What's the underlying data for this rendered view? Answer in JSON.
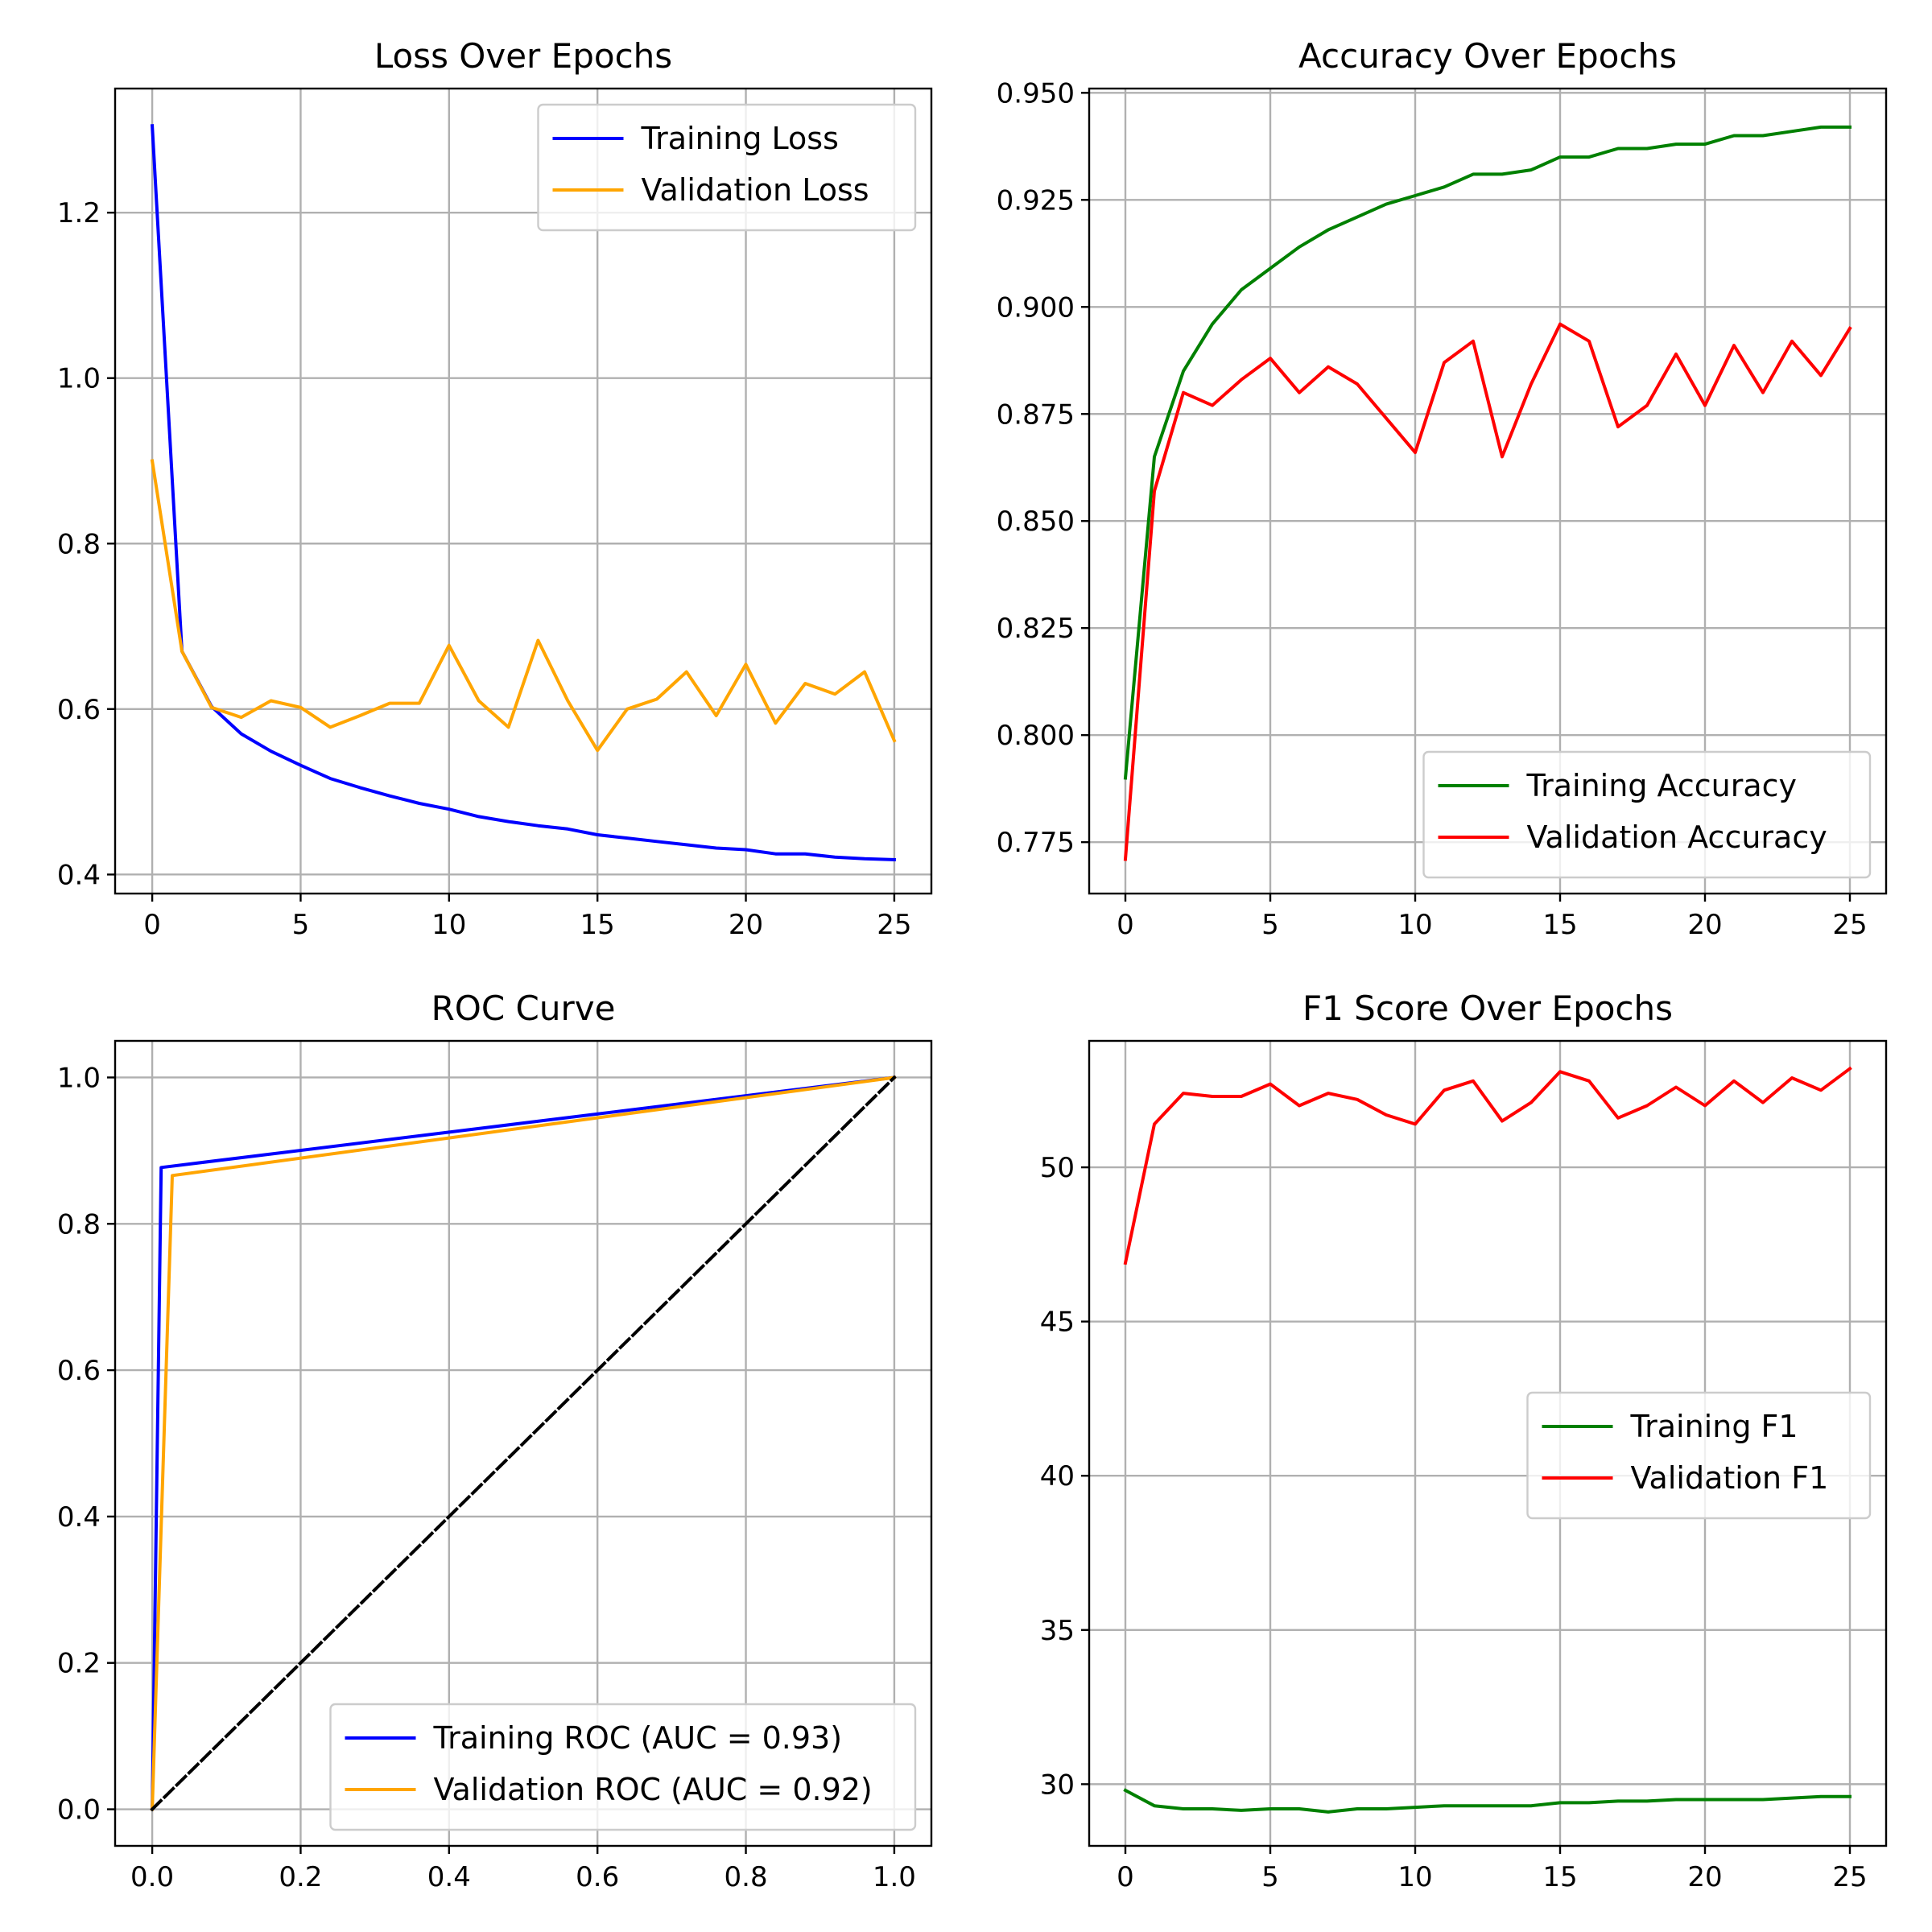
{
  "chart_data": [
    {
      "type": "line",
      "title": "Loss Over Epochs",
      "xlabel": "",
      "ylabel": "",
      "xlim": [
        -1.25,
        26.25
      ],
      "ylim": [
        0.377,
        1.35
      ],
      "xticks": [
        0,
        5,
        10,
        15,
        20,
        25
      ],
      "xtick_labels": [
        "0",
        "5",
        "10",
        "15",
        "20",
        "25"
      ],
      "yticks": [
        0.4,
        0.6,
        0.8,
        1.0,
        1.2
      ],
      "ytick_labels": [
        "0.4",
        "0.6",
        "0.8",
        "1.0",
        "1.2"
      ],
      "grid": true,
      "legend_position": "upper-right",
      "series": [
        {
          "name": "Training Loss",
          "color": "#0000ff",
          "x": [
            0,
            1,
            2,
            3,
            4,
            5,
            6,
            7,
            8,
            9,
            10,
            11,
            12,
            13,
            14,
            15,
            16,
            17,
            18,
            19,
            20,
            21,
            22,
            23,
            24,
            25
          ],
          "y": [
            1.305,
            0.67,
            0.603,
            0.57,
            0.549,
            0.532,
            0.516,
            0.505,
            0.495,
            0.486,
            0.479,
            0.47,
            0.464,
            0.459,
            0.455,
            0.448,
            0.444,
            0.44,
            0.436,
            0.432,
            0.43,
            0.425,
            0.425,
            0.421,
            0.419,
            0.418
          ]
        },
        {
          "name": "Validation Loss",
          "color": "#ffa500",
          "x": [
            0,
            1,
            2,
            3,
            4,
            5,
            6,
            7,
            8,
            9,
            10,
            11,
            12,
            13,
            14,
            15,
            16,
            17,
            18,
            19,
            20,
            21,
            22,
            23,
            24,
            25
          ],
          "y": [
            0.9,
            0.67,
            0.602,
            0.59,
            0.61,
            0.602,
            0.578,
            0.592,
            0.607,
            0.607,
            0.677,
            0.61,
            0.578,
            0.683,
            0.61,
            0.55,
            0.6,
            0.612,
            0.645,
            0.592,
            0.654,
            0.583,
            0.631,
            0.618,
            0.645,
            0.562
          ]
        }
      ]
    },
    {
      "type": "line",
      "title": "Accuracy Over Epochs",
      "xlabel": "",
      "ylabel": "",
      "xlim": [
        -1.25,
        26.25
      ],
      "ylim": [
        0.763,
        0.951
      ],
      "xticks": [
        0,
        5,
        10,
        15,
        20,
        25
      ],
      "xtick_labels": [
        "0",
        "5",
        "10",
        "15",
        "20",
        "25"
      ],
      "yticks": [
        0.775,
        0.8,
        0.825,
        0.85,
        0.875,
        0.9,
        0.925,
        0.95
      ],
      "ytick_labels": [
        "0.775",
        "0.800",
        "0.825",
        "0.850",
        "0.875",
        "0.900",
        "0.925",
        "0.950"
      ],
      "grid": true,
      "legend_position": "lower-right",
      "series": [
        {
          "name": "Training Accuracy",
          "color": "#008000",
          "x": [
            0,
            1,
            2,
            3,
            4,
            5,
            6,
            7,
            8,
            9,
            10,
            11,
            12,
            13,
            14,
            15,
            16,
            17,
            18,
            19,
            20,
            21,
            22,
            23,
            24,
            25
          ],
          "y": [
            0.79,
            0.865,
            0.885,
            0.896,
            0.904,
            0.909,
            0.914,
            0.918,
            0.921,
            0.924,
            0.926,
            0.928,
            0.931,
            0.931,
            0.932,
            0.935,
            0.935,
            0.937,
            0.937,
            0.938,
            0.938,
            0.94,
            0.94,
            0.941,
            0.942,
            0.942
          ]
        },
        {
          "name": "Validation Accuracy",
          "color": "#ff0000",
          "x": [
            0,
            1,
            2,
            3,
            4,
            5,
            6,
            7,
            8,
            9,
            10,
            11,
            12,
            13,
            14,
            15,
            16,
            17,
            18,
            19,
            20,
            21,
            22,
            23,
            24,
            25
          ],
          "y": [
            0.771,
            0.857,
            0.88,
            0.877,
            0.883,
            0.888,
            0.88,
            0.886,
            0.882,
            0.874,
            0.866,
            0.887,
            0.892,
            0.865,
            0.882,
            0.896,
            0.892,
            0.872,
            0.877,
            0.889,
            0.877,
            0.891,
            0.88,
            0.892,
            0.884,
            0.895
          ]
        }
      ]
    },
    {
      "type": "line",
      "title": "ROC Curve",
      "xlabel": "",
      "ylabel": "",
      "xlim": [
        -0.05,
        1.05
      ],
      "ylim": [
        -0.05,
        1.05
      ],
      "xticks": [
        0,
        0.2,
        0.4,
        0.6,
        0.8,
        1.0
      ],
      "xtick_labels": [
        "0.0",
        "0.2",
        "0.4",
        "0.6",
        "0.8",
        "1.0"
      ],
      "yticks": [
        0,
        0.2,
        0.4,
        0.6,
        0.8,
        1.0
      ],
      "ytick_labels": [
        "0.0",
        "0.2",
        "0.4",
        "0.6",
        "0.8",
        "1.0"
      ],
      "grid": true,
      "legend_position": "lower-right",
      "series": [
        {
          "name": "Training ROC (AUC = 0.93)",
          "color": "#0000ff",
          "x": [
            0,
            0.012,
            1.0
          ],
          "y": [
            0,
            0.877,
            1.0
          ]
        },
        {
          "name": "Validation ROC (AUC = 0.92)",
          "color": "#ffa500",
          "x": [
            0,
            0.027,
            1.0
          ],
          "y": [
            0,
            0.866,
            1.0
          ]
        },
        {
          "color": "#000000",
          "dashed": true,
          "x": [
            0,
            1
          ],
          "y": [
            0,
            1
          ]
        }
      ]
    },
    {
      "type": "line",
      "title": "F1 Score Over Epochs",
      "xlabel": "",
      "ylabel": "",
      "xlim": [
        -1.25,
        26.25
      ],
      "ylim": [
        28.0,
        54.1
      ],
      "xticks": [
        0,
        5,
        10,
        15,
        20,
        25
      ],
      "xtick_labels": [
        "0",
        "5",
        "10",
        "15",
        "20",
        "25"
      ],
      "yticks": [
        30,
        35,
        40,
        45,
        50
      ],
      "ytick_labels": [
        "30",
        "35",
        "40",
        "45",
        "50"
      ],
      "grid": true,
      "legend_position": "center-right",
      "series": [
        {
          "name": "Training F1",
          "color": "#008000",
          "x": [
            0,
            1,
            2,
            3,
            4,
            5,
            6,
            7,
            8,
            9,
            10,
            11,
            12,
            13,
            14,
            15,
            16,
            17,
            18,
            19,
            20,
            21,
            22,
            23,
            24,
            25
          ],
          "y": [
            29.8,
            29.3,
            29.2,
            29.2,
            29.15,
            29.2,
            29.2,
            29.1,
            29.2,
            29.2,
            29.25,
            29.3,
            29.3,
            29.3,
            29.3,
            29.4,
            29.4,
            29.45,
            29.45,
            29.5,
            29.5,
            29.5,
            29.5,
            29.55,
            29.6,
            29.6
          ]
        },
        {
          "name": "Validation F1",
          "color": "#ff0000",
          "x": [
            0,
            1,
            2,
            3,
            4,
            5,
            6,
            7,
            8,
            9,
            10,
            11,
            12,
            13,
            14,
            15,
            16,
            17,
            18,
            19,
            20,
            21,
            22,
            23,
            24,
            25
          ],
          "y": [
            46.9,
            51.4,
            52.4,
            52.3,
            52.3,
            52.7,
            52.0,
            52.4,
            52.2,
            51.7,
            51.4,
            52.5,
            52.8,
            51.5,
            52.1,
            53.1,
            52.8,
            51.6,
            52.0,
            52.6,
            52.0,
            52.8,
            52.1,
            52.9,
            52.5,
            53.2
          ]
        }
      ]
    }
  ]
}
